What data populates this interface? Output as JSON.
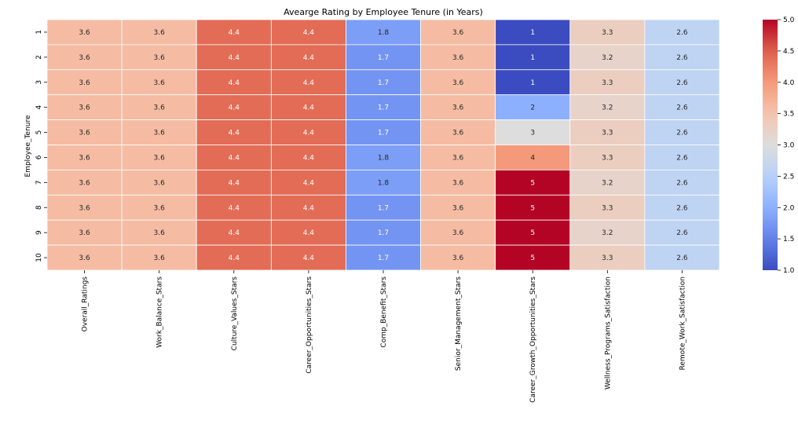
{
  "chart_data": {
    "type": "heatmap",
    "title": "Avearge Rating by Employee Tenure (in Years)",
    "ylabel": "Employee_Tenure",
    "xlabel": "",
    "rows": [
      "1",
      "2",
      "3",
      "4",
      "5",
      "6",
      "7",
      "8",
      "9",
      "10"
    ],
    "columns": [
      "Overall_Ratings",
      "Work_Balance_Stars",
      "Culture_Values_Stars",
      "Career_Opportunities_Stars",
      "Comp_Benefit_Stars",
      "Senior_Management_Stars",
      "Career_Growth_Opportunities_Stars",
      "Wellness_Programs_Satisfaction",
      "Remote_Work_Satisfaction"
    ],
    "values": [
      [
        3.6,
        3.6,
        4.4,
        4.4,
        1.8,
        3.6,
        1,
        3.3,
        2.6
      ],
      [
        3.6,
        3.6,
        4.4,
        4.4,
        1.7,
        3.6,
        1,
        3.2,
        2.6
      ],
      [
        3.6,
        3.6,
        4.4,
        4.4,
        1.7,
        3.6,
        1,
        3.3,
        2.6
      ],
      [
        3.6,
        3.6,
        4.4,
        4.4,
        1.7,
        3.6,
        2,
        3.2,
        2.6
      ],
      [
        3.6,
        3.6,
        4.4,
        4.4,
        1.7,
        3.6,
        3,
        3.3,
        2.6
      ],
      [
        3.6,
        3.6,
        4.4,
        4.4,
        1.8,
        3.6,
        4,
        3.3,
        2.6
      ],
      [
        3.6,
        3.6,
        4.4,
        4.4,
        1.8,
        3.6,
        5,
        3.2,
        2.6
      ],
      [
        3.6,
        3.6,
        4.4,
        4.4,
        1.7,
        3.6,
        5,
        3.3,
        2.6
      ],
      [
        3.6,
        3.6,
        4.4,
        4.4,
        1.7,
        3.6,
        5,
        3.2,
        2.6
      ],
      [
        3.6,
        3.6,
        4.4,
        4.4,
        1.7,
        3.6,
        5,
        3.3,
        2.6
      ]
    ],
    "colormap": "coolwarm",
    "vmin": 1.0,
    "vmax": 5.0,
    "colorbar_ticks": [
      "1.0",
      "1.5",
      "2.0",
      "2.5",
      "3.0",
      "3.5",
      "4.0",
      "4.5",
      "5.0"
    ],
    "annotations": true,
    "grid_line_color": "#ffffff"
  }
}
